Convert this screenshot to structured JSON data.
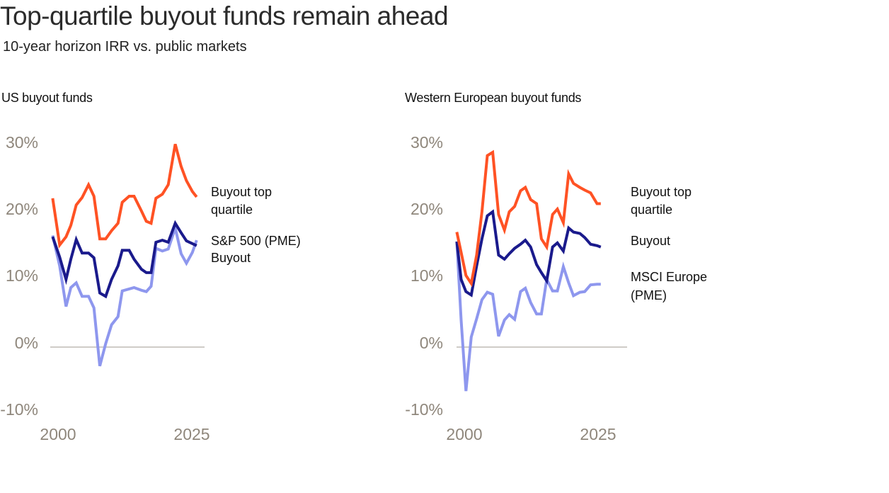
{
  "header": {
    "title": "Top-quartile buyout funds remain ahead",
    "subtitle": "10-year horizon IRR vs. public markets"
  },
  "colors": {
    "top_quartile": "#ff5224",
    "buyout": "#1a1a8c",
    "pme": "#8e97ee",
    "zero_line": "#c8c5bf",
    "tick_text": "#8f877c"
  },
  "chart_data": [
    {
      "type": "line",
      "title": "US buyout funds",
      "xlabel": "",
      "ylabel": "",
      "ylim": [
        -10,
        30
      ],
      "xlim": [
        1999,
        2026
      ],
      "yticks": [
        "30%",
        "20%",
        "10%",
        "0%",
        "-10%"
      ],
      "ytick_values": [
        30,
        20,
        10,
        0,
        -10
      ],
      "xticks": [
        "2000",
        "2025"
      ],
      "xtick_values": [
        2000,
        2025
      ],
      "zero_line": true,
      "grid": false,
      "series": [
        {
          "name": "Buyout top quartile",
          "legend": [
            "Buyout top",
            "quartile"
          ],
          "color_key": "top_quartile",
          "x": [
            1999,
            2000.3,
            2001.5,
            2002.4,
            2003.4,
            2004.5,
            2005.7,
            2006.7,
            2007.8,
            2008.9,
            2010,
            2011.2,
            2012,
            2013.3,
            2014.2,
            2015.6,
            2016.5,
            2017.4,
            2018.3,
            2019.5,
            2020.6,
            2021.9,
            2023,
            2024,
            2025.1,
            2025.9
          ],
          "y": [
            22,
            15.1,
            16.3,
            18,
            21,
            22.1,
            24,
            22.3,
            16,
            16,
            17.2,
            18.3,
            21.4,
            22.3,
            22.3,
            20.1,
            18.6,
            18.3,
            22,
            22.6,
            24,
            30,
            26.7,
            24.6,
            23,
            22.2
          ]
        },
        {
          "name": "Buyout",
          "legend": [
            "Buyout"
          ],
          "color_key": "buyout",
          "x": [
            1999,
            2000.3,
            2001.5,
            2002.4,
            2003.4,
            2004.5,
            2005.7,
            2006.7,
            2007.8,
            2008.9,
            2010,
            2011.2,
            2012,
            2013.3,
            2014.2,
            2015.6,
            2016.5,
            2017.4,
            2018.3,
            2019.5,
            2020.6,
            2021.9,
            2023,
            2024,
            2025.1,
            2025.9
          ],
          "y": [
            16.3,
            13.3,
            10,
            13,
            15.9,
            13.9,
            13.9,
            13.2,
            8,
            7.5,
            10,
            12,
            14.3,
            14.3,
            13,
            11.5,
            11,
            11,
            15.5,
            15.8,
            15.5,
            18.3,
            16.9,
            15.7,
            15.3,
            15
          ]
        },
        {
          "name": "S&P 500 (PME)",
          "legend": [
            "S&P 500 (PME)"
          ],
          "color_key": "pme",
          "x": [
            1999,
            2000.3,
            2001.5,
            2002.4,
            2003.4,
            2004.5,
            2005.7,
            2006.7,
            2007.8,
            2008.9,
            2010,
            2011.2,
            2012,
            2013.3,
            2014.2,
            2015.6,
            2016.5,
            2017.4,
            2018.3,
            2019.5,
            2020.6,
            2021.9,
            2023,
            2024,
            2025.1,
            2025.9
          ],
          "y": [
            16.5,
            12,
            6,
            8.8,
            9.5,
            7.5,
            7.5,
            5.8,
            -2.8,
            0.5,
            3.3,
            4.5,
            8.3,
            8.6,
            8.8,
            8.4,
            8.2,
            9,
            14.6,
            14.2,
            14.5,
            17.6,
            13.8,
            12.4,
            14,
            15.8
          ]
        }
      ]
    },
    {
      "type": "line",
      "title": "Western European buyout funds",
      "xlabel": "",
      "ylabel": "",
      "ylim": [
        -10,
        30
      ],
      "xlim": [
        1999,
        2026
      ],
      "yticks": [
        "30%",
        "20%",
        "10%",
        "0%",
        "-10%"
      ],
      "ytick_values": [
        30,
        20,
        10,
        0,
        -10
      ],
      "xticks": [
        "2000",
        "2025"
      ],
      "xtick_values": [
        2000,
        2025
      ],
      "zero_line": true,
      "grid": false,
      "series": [
        {
          "name": "Buyout top quartile",
          "legend": [
            "Buyout top",
            "quartile"
          ],
          "color_key": "top_quartile",
          "x": [
            1998.6,
            1999.4,
            2000.3,
            2001.3,
            2002.3,
            2003.3,
            2004.3,
            2005.3,
            2006.4,
            2007.5,
            2008.4,
            2009.4,
            2010.5,
            2011.4,
            2012.4,
            2013.5,
            2014.4,
            2015.4,
            2016.5,
            2017.4,
            2018.5,
            2019.5,
            2020.4,
            2021.6,
            2022.5,
            2023.6,
            2024.8,
            2025.5
          ],
          "y": [
            17,
            14,
            10.6,
            9.4,
            13.6,
            20,
            28.3,
            28.8,
            19.6,
            17.3,
            20,
            20.8,
            23.1,
            23.6,
            21.8,
            21.2,
            16,
            14.8,
            19.6,
            20.4,
            18.4,
            25.6,
            24.2,
            23.6,
            23.2,
            22.8,
            21.2,
            21.2
          ]
        },
        {
          "name": "Buyout",
          "legend": [
            "Buyout"
          ],
          "color_key": "buyout",
          "x": [
            1998.6,
            1999.4,
            2000.3,
            2001.3,
            2002.3,
            2003.3,
            2004.3,
            2005.3,
            2006.4,
            2007.5,
            2008.4,
            2009.4,
            2010.5,
            2011.4,
            2012.4,
            2013.5,
            2014.4,
            2015.4,
            2016.5,
            2017.4,
            2018.5,
            2019.5,
            2020.4,
            2021.6,
            2022.5,
            2023.6,
            2024.8,
            2025.5
          ],
          "y": [
            15.6,
            10,
            8.2,
            7.7,
            12,
            16,
            19.4,
            20,
            13.6,
            13,
            13.8,
            14.6,
            15.2,
            15.8,
            14.8,
            12.2,
            11,
            9.8,
            14.8,
            15.4,
            14.2,
            17.6,
            17,
            16.8,
            16.2,
            15.2,
            15,
            14.8
          ]
        },
        {
          "name": "MSCI Europe (PME)",
          "legend": [
            "MSCI Europe",
            "(PME)"
          ],
          "color_key": "pme",
          "x": [
            1998.6,
            1999.4,
            2000.3,
            2001.3,
            2002.3,
            2003.3,
            2004.3,
            2005.3,
            2006.4,
            2007.5,
            2008.4,
            2009.4,
            2010.5,
            2011.4,
            2012.4,
            2013.5,
            2014.4,
            2015.4,
            2016.5,
            2017.4,
            2018.5,
            2019.5,
            2020.4,
            2021.6,
            2022.5,
            2023.6,
            2024.8,
            2025.5
          ],
          "y": [
            15.6,
            4,
            -6.5,
            1.5,
            4.2,
            7,
            8.1,
            7.8,
            1.6,
            4,
            4.8,
            4.1,
            8.2,
            8.7,
            6.6,
            4.9,
            4.9,
            10,
            8.3,
            8.3,
            11.9,
            9.5,
            7.6,
            8.1,
            8.2,
            9.2,
            9.3,
            9.3
          ]
        }
      ]
    }
  ]
}
